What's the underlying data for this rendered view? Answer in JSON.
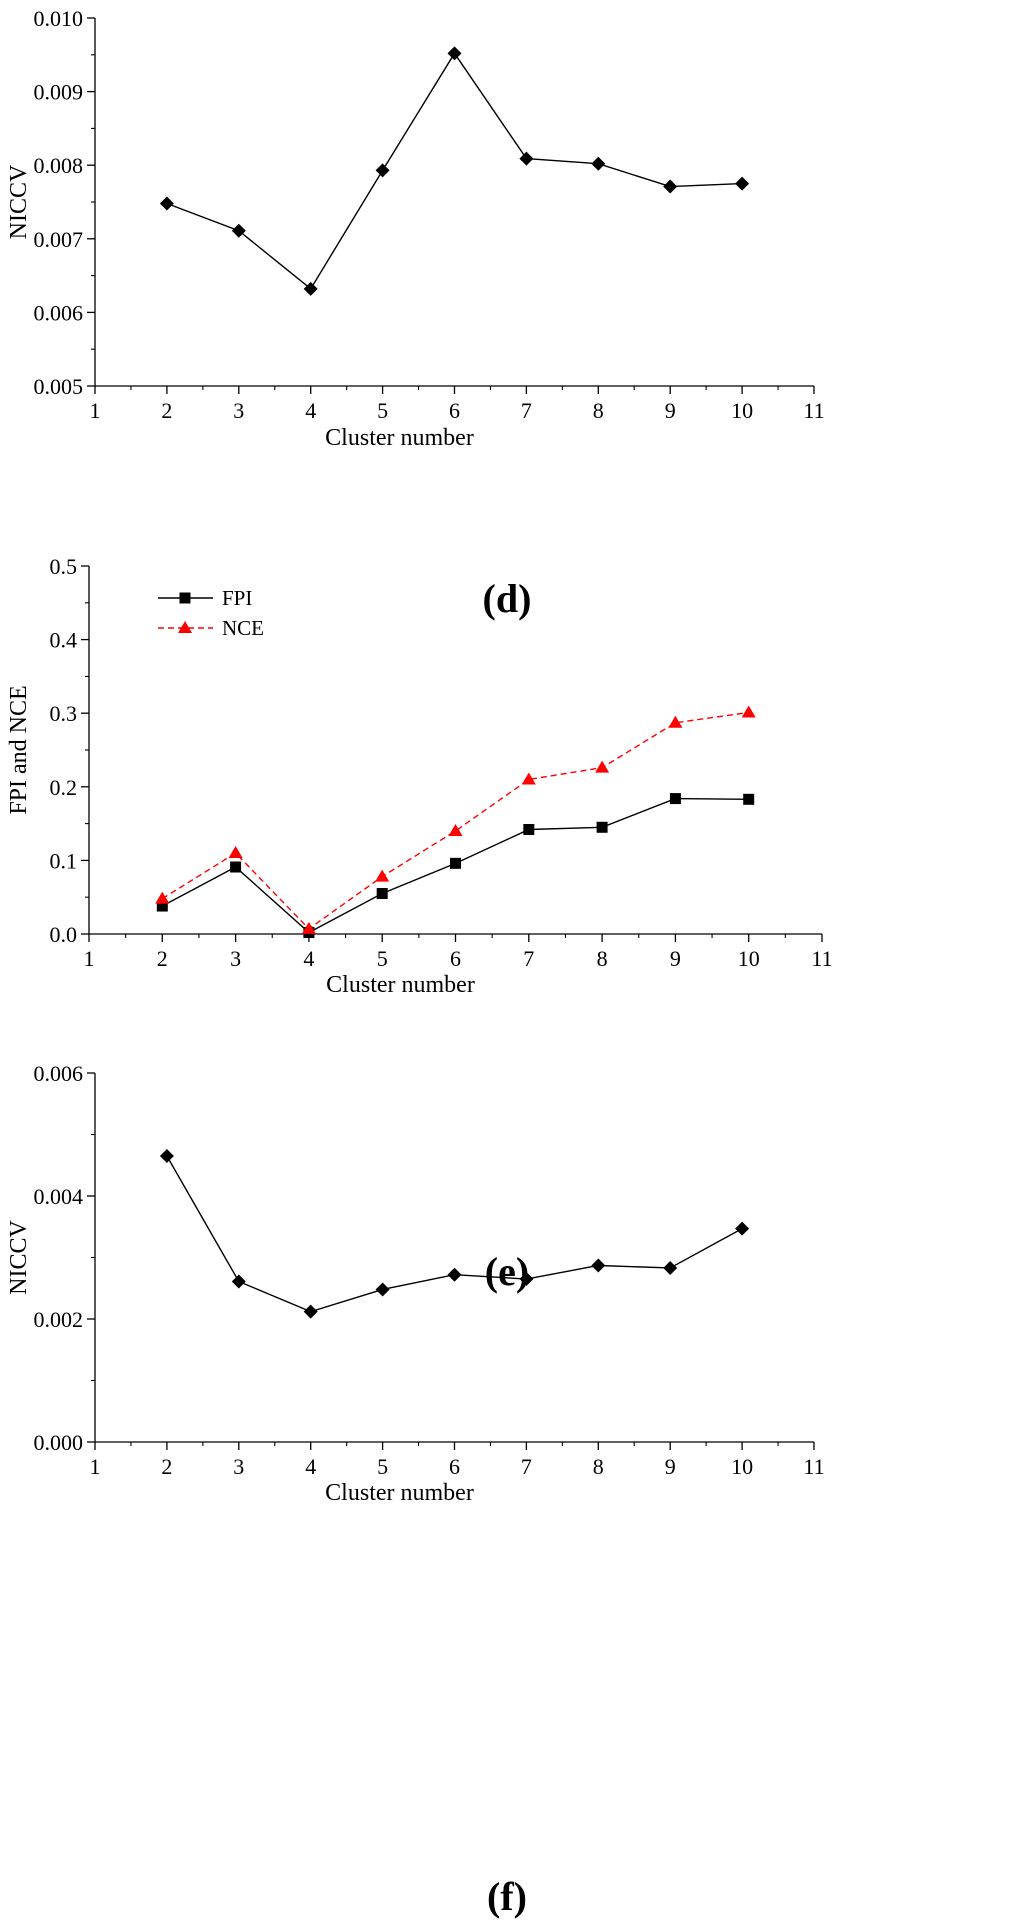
{
  "chart_data": [
    {
      "type": "line",
      "panel_label": "(d)",
      "xlabel": "Cluster number",
      "ylabel": "NICCV",
      "xlim": [
        1,
        11
      ],
      "ylim": [
        0.005,
        0.01
      ],
      "xticks": [
        "1",
        "2",
        "3",
        "4",
        "5",
        "6",
        "7",
        "8",
        "9",
        "10",
        "11"
      ],
      "yticks": [
        "0.005",
        "0.006",
        "0.007",
        "0.008",
        "0.009",
        "0.010"
      ],
      "legend": [],
      "series": [
        {
          "name": "NICCV",
          "color": "#000000",
          "marker": "diamond",
          "x": [
            2,
            3,
            4,
            5,
            6,
            7,
            8,
            9,
            10
          ],
          "values": [
            0.00748,
            0.00711,
            0.00632,
            0.00793,
            0.00952,
            0.00809,
            0.00802,
            0.00771,
            0.00775
          ]
        }
      ]
    },
    {
      "type": "line",
      "panel_label": "(e)",
      "xlabel": "Cluster number",
      "ylabel": "FPI and NCE",
      "xlim": [
        1,
        11
      ],
      "ylim": [
        0.0,
        0.5
      ],
      "xticks": [
        "1",
        "2",
        "3",
        "4",
        "5",
        "6",
        "7",
        "8",
        "9",
        "10",
        "11"
      ],
      "yticks": [
        "0.0",
        "0.1",
        "0.2",
        "0.3",
        "0.4",
        "0.5"
      ],
      "legend": [
        "FPI",
        "NCE"
      ],
      "series": [
        {
          "name": "FPI",
          "color": "#000000",
          "marker": "square",
          "dashed": false,
          "x": [
            2,
            3,
            4,
            5,
            6,
            7,
            8,
            9,
            10
          ],
          "values": [
            0.038,
            0.091,
            0.002,
            0.055,
            0.096,
            0.142,
            0.145,
            0.184,
            0.183
          ]
        },
        {
          "name": "NCE",
          "color": "#ff0000",
          "marker": "triangle",
          "dashed": true,
          "x": [
            2,
            3,
            4,
            5,
            6,
            7,
            8,
            9,
            10
          ],
          "values": [
            0.048,
            0.11,
            0.007,
            0.078,
            0.14,
            0.21,
            0.226,
            0.287,
            0.301
          ]
        }
      ]
    },
    {
      "type": "line",
      "panel_label": "(f)",
      "xlabel": "Cluster number",
      "ylabel": "NICCV",
      "xlim": [
        1,
        11
      ],
      "ylim": [
        0.0,
        0.006
      ],
      "xticks": [
        "1",
        "2",
        "3",
        "4",
        "5",
        "6",
        "7",
        "8",
        "9",
        "10",
        "11"
      ],
      "yticks": [
        "0.000",
        "0.002",
        "0.004",
        "0.006"
      ],
      "legend": [],
      "series": [
        {
          "name": "NICCV",
          "color": "#000000",
          "marker": "diamond",
          "x": [
            2,
            3,
            4,
            5,
            6,
            7,
            8,
            9,
            10
          ],
          "values": [
            0.00465,
            0.00261,
            0.00212,
            0.00248,
            0.00272,
            0.00265,
            0.00287,
            0.00283,
            0.00347
          ]
        }
      ]
    }
  ]
}
